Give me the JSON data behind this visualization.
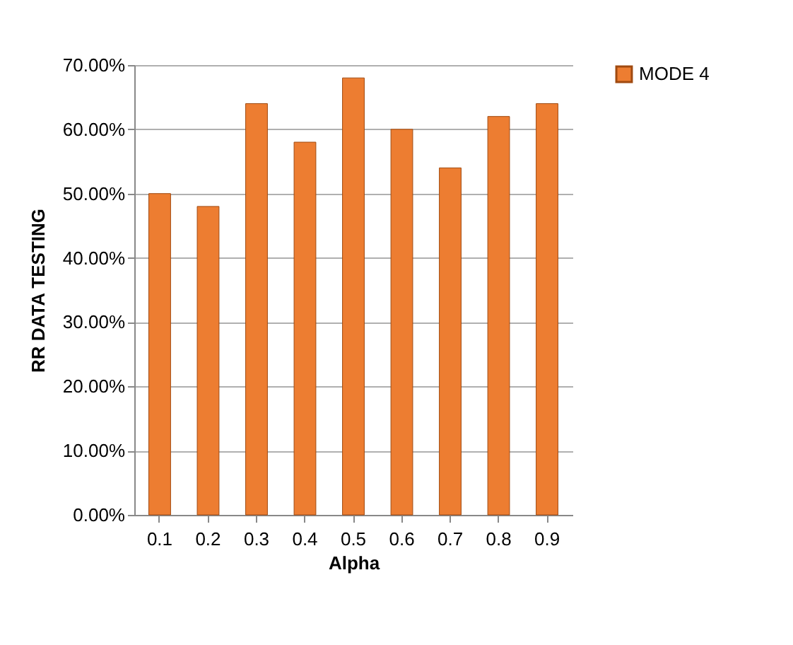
{
  "chart_data": {
    "type": "bar",
    "xlabel": "Alpha",
    "ylabel": "RR DATA TESTING",
    "categories": [
      "0.1",
      "0.2",
      "0.3",
      "0.4",
      "0.5",
      "0.6",
      "0.7",
      "0.8",
      "0.9"
    ],
    "series": [
      {
        "name": "MODE 4",
        "color": "#ed7d31",
        "values": [
          50,
          48,
          64,
          58,
          68,
          60,
          54,
          62,
          64
        ]
      }
    ],
    "ylim": [
      0,
      70
    ],
    "yticks": [
      {
        "value": 0,
        "label": "0.00%"
      },
      {
        "value": 10,
        "label": "10.00%"
      },
      {
        "value": 20,
        "label": "20.00%"
      },
      {
        "value": 30,
        "label": "30.00%"
      },
      {
        "value": 40,
        "label": "40.00%"
      },
      {
        "value": 50,
        "label": "50.00%"
      },
      {
        "value": 60,
        "label": "60.00%"
      },
      {
        "value": 70,
        "label": "70.00%"
      }
    ],
    "grid": "y",
    "legend": "right"
  }
}
